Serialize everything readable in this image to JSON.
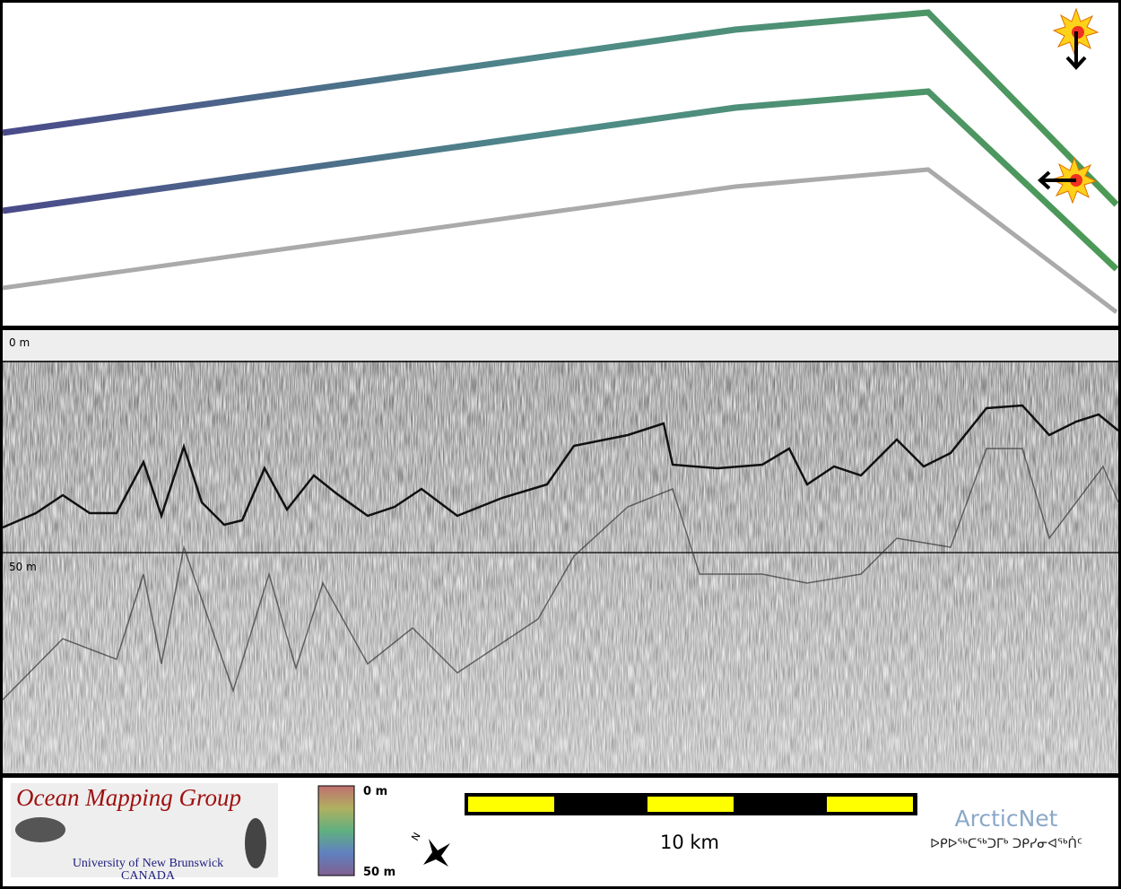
{
  "profile": {
    "top_label": "0 m",
    "mid_label": "50 m"
  },
  "legend": {
    "depth_min": "0 m",
    "depth_max": "50 m"
  },
  "scale_bar": {
    "label": "10 km"
  },
  "compass": {
    "label": "N"
  },
  "logos": {
    "omg": {
      "title": "Ocean Mapping Group",
      "line1": "University of New Brunswick",
      "line2": "CANADA"
    },
    "arcticnet": {
      "name": "ArcticNet",
      "syllabics": "ᐅᑭᐅᖅᑕᖅᑐᒥᒃ ᑐᑭᓯᓂᐊᖅᑏᑦ"
    }
  }
}
